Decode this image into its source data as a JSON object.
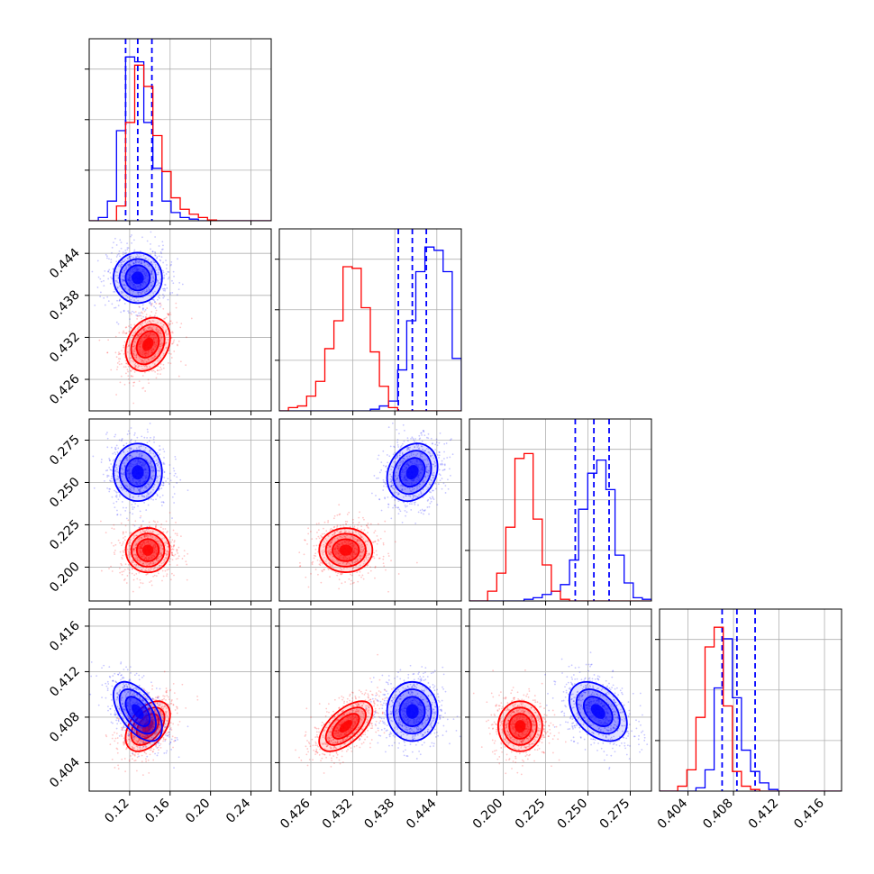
{
  "chart_data": {
    "type": "corner",
    "grid": true,
    "colors": {
      "series_a": "#0000ff",
      "series_b": "#ff0000"
    },
    "params": [
      {
        "range": [
          0.08,
          0.26
        ],
        "ticks": [
          "0.12",
          "0.16",
          "0.20",
          "0.24"
        ],
        "tick_values": [
          0.12,
          0.16,
          0.2,
          0.24
        ]
      },
      {
        "range": [
          0.4215,
          0.4475
        ],
        "ticks": [
          "0.426",
          "0.432",
          "0.438",
          "0.444"
        ],
        "tick_values": [
          0.426,
          0.432,
          0.438,
          0.444
        ]
      },
      {
        "range": [
          0.18,
          0.2875
        ],
        "ticks": [
          "0.200",
          "0.225",
          "0.250",
          "0.275"
        ],
        "tick_values": [
          0.2,
          0.225,
          0.25,
          0.275
        ]
      },
      {
        "range": [
          0.4015,
          0.4175
        ],
        "ticks": [
          "0.404",
          "0.408",
          "0.412",
          "0.416"
        ],
        "tick_values": [
          0.404,
          0.408,
          0.412,
          0.416
        ]
      }
    ],
    "series": [
      {
        "name": "",
        "color": "#0000ff",
        "means": [
          0.128,
          0.4405,
          0.256,
          0.4085
        ],
        "sigmas": [
          0.012,
          0.0018,
          0.0085,
          0.0013
        ],
        "corr": [
          [
            1,
            0,
            0,
            -0.55
          ],
          [
            0,
            1,
            0.2,
            0
          ],
          [
            0,
            0.2,
            1,
            -0.4
          ],
          [
            -0.55,
            0,
            -0.4,
            1
          ]
        ],
        "quantiles": [
          [
            0.116,
            0.128,
            0.142
          ],
          [
            0.4385,
            0.4405,
            0.4425
          ],
          [
            0.2425,
            0.2535,
            0.2625
          ],
          [
            0.407,
            0.4083,
            0.4099
          ]
        ],
        "hist": [
          [
            0.0,
            0.02,
            0.12,
            0.55,
            1.0,
            0.97,
            0.6,
            0.32,
            0.12,
            0.05,
            0.02,
            0.01,
            0.0,
            0.0,
            0.0,
            0.0,
            0.0,
            0.0,
            0.0,
            0.0
          ],
          [
            0.0,
            0.0,
            0.0,
            0.0,
            0.0,
            0.0,
            0.0,
            0.0,
            0.0,
            0.0,
            0.01,
            0.03,
            0.06,
            0.25,
            0.55,
            0.85,
            1.0,
            0.98,
            0.85,
            0.32
          ],
          [
            0.0,
            0.0,
            0.0,
            0.0,
            0.0,
            0.0,
            0.01,
            0.02,
            0.04,
            0.06,
            0.1,
            0.25,
            0.56,
            0.78,
            0.86,
            0.68,
            0.28,
            0.11,
            0.02,
            0.01
          ],
          [
            0.0,
            0.0,
            0.0,
            0.0,
            0.02,
            0.13,
            0.63,
            0.93,
            0.57,
            0.25,
            0.12,
            0.05,
            0.01,
            0.0,
            0.0,
            0.0,
            0.0,
            0.0,
            0.0,
            0.0
          ]
        ]
      },
      {
        "name": "",
        "color": "#ff0000",
        "means": [
          0.138,
          0.431,
          0.21,
          0.4072
        ],
        "sigmas": [
          0.011,
          0.0019,
          0.0065,
          0.0011
        ],
        "corr": [
          [
            1,
            0.25,
            0,
            0.45
          ],
          [
            0.25,
            1,
            0,
            0.6
          ],
          [
            0,
            0,
            1,
            0
          ],
          [
            0.45,
            0.6,
            0,
            1
          ]
        ],
        "quantiles": [],
        "hist": [
          [
            0.0,
            0.0,
            0.0,
            0.09,
            0.6,
            0.95,
            0.82,
            0.52,
            0.3,
            0.14,
            0.07,
            0.04,
            0.02,
            0.005,
            0.0,
            0.0,
            0.0,
            0.0,
            0.0,
            0.0
          ],
          [
            0.0,
            0.02,
            0.03,
            0.09,
            0.18,
            0.38,
            0.55,
            0.88,
            0.87,
            0.63,
            0.36,
            0.15,
            0.02,
            0.0,
            0.0,
            0.0,
            0.0,
            0.0,
            0.0,
            0.0
          ],
          [
            0.0,
            0.0,
            0.06,
            0.17,
            0.45,
            0.87,
            0.9,
            0.5,
            0.22,
            0.06,
            0.01,
            0.0,
            0.0,
            0.0,
            0.0,
            0.0,
            0.0,
            0.0,
            0.0,
            0.0
          ],
          [
            0.0,
            0.0,
            0.03,
            0.13,
            0.45,
            0.88,
            1.0,
            0.52,
            0.12,
            0.03,
            0.01,
            0.0,
            0.0,
            0.0,
            0.0,
            0.0,
            0.0,
            0.0,
            0.0,
            0.0
          ]
        ]
      }
    ]
  }
}
